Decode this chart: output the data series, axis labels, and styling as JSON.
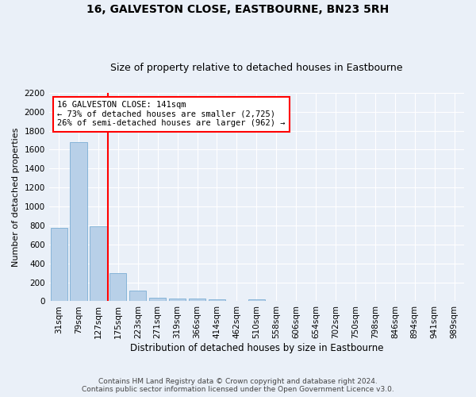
{
  "title": "16, GALVESTON CLOSE, EASTBOURNE, BN23 5RH",
  "subtitle": "Size of property relative to detached houses in Eastbourne",
  "xlabel": "Distribution of detached houses by size in Eastbourne",
  "ylabel": "Number of detached properties",
  "categories": [
    "31sqm",
    "79sqm",
    "127sqm",
    "175sqm",
    "223sqm",
    "271sqm",
    "319sqm",
    "366sqm",
    "414sqm",
    "462sqm",
    "510sqm",
    "558sqm",
    "606sqm",
    "654sqm",
    "702sqm",
    "750sqm",
    "798sqm",
    "846sqm",
    "894sqm",
    "941sqm",
    "989sqm"
  ],
  "values": [
    775,
    1680,
    795,
    300,
    110,
    40,
    30,
    25,
    20,
    0,
    20,
    0,
    0,
    0,
    0,
    0,
    0,
    0,
    0,
    0,
    0
  ],
  "bar_color": "#b8d0e8",
  "bar_edge_color": "#7aadd4",
  "red_line_x": 2.5,
  "annotation_line1": "16 GALVESTON CLOSE: 141sqm",
  "annotation_line2": "← 73% of detached houses are smaller (2,725)",
  "annotation_line3": "26% of semi-detached houses are larger (962) →",
  "ylim": [
    0,
    2200
  ],
  "yticks": [
    0,
    200,
    400,
    600,
    800,
    1000,
    1200,
    1400,
    1600,
    1800,
    2000,
    2200
  ],
  "footer_line1": "Contains HM Land Registry data © Crown copyright and database right 2024.",
  "footer_line2": "Contains public sector information licensed under the Open Government Licence v3.0.",
  "bg_color": "#eaf0f8",
  "plot_bg_color": "#eaf0f8",
  "title_fontsize": 10,
  "subtitle_fontsize": 9,
  "ylabel_fontsize": 8,
  "xlabel_fontsize": 8.5,
  "tick_fontsize": 7.5,
  "annotation_fontsize": 7.5,
  "footer_fontsize": 6.5
}
